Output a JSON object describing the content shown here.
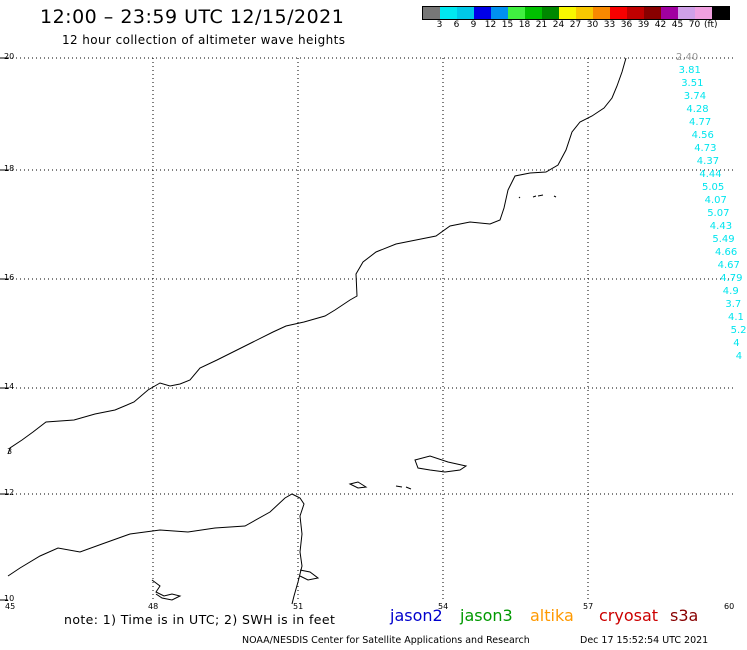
{
  "header": {
    "title": "12:00 – 23:59 UTC 12/15/2021",
    "subtitle": "12 hour collection of altimeter wave heights"
  },
  "legend": {
    "colors": [
      "#777777",
      "#00e8f0",
      "#00c8e8",
      "#0000e8",
      "#0090f0",
      "#40f040",
      "#00c000",
      "#008800",
      "#f8f800",
      "#f8c800",
      "#f88800",
      "#f80000",
      "#c00000",
      "#880000",
      "#a000a0",
      "#d0a0e8",
      "#f0a0e0",
      "#000000"
    ],
    "labels": [
      "3",
      "6",
      "9",
      "12",
      "15",
      "18",
      "21",
      "24",
      "27",
      "30",
      "33",
      "36",
      "39",
      "42",
      "45",
      "70"
    ],
    "unit": "(ft)"
  },
  "map": {
    "lat_labels": [
      "20",
      "18",
      "16",
      "14",
      "12",
      "10"
    ],
    "lon_labels": [
      "45",
      "48",
      "51",
      "54",
      "57",
      "60"
    ],
    "swh_values": [
      "2.40",
      "3.81",
      "3.51",
      "3.74",
      "4.28",
      "4.77",
      "4.56",
      "4.73",
      "4.37",
      "4.44",
      "5.05",
      "4.07",
      "5.07",
      "4.43",
      "5.49",
      "4.66",
      "4.67",
      "4.79",
      "4.9",
      "3.7",
      "4.1",
      "5.2",
      "4",
      "4"
    ],
    "coast_labels": [
      "3"
    ]
  },
  "footer": {
    "note": "note: 1) Time is in UTC; 2) SWH is in feet",
    "satellites": [
      {
        "name": "jason2",
        "color": "#0000cc"
      },
      {
        "name": "jason3",
        "color": "#009900"
      },
      {
        "name": "altika",
        "color": "#ff9900"
      },
      {
        "name": "cryosat",
        "color": "#cc0000"
      },
      {
        "name": "s3a",
        "color": "#880000"
      }
    ],
    "credit": "NOAA/NESDIS Center for Satellite Applications and Research",
    "timestamp": "Dec 17 15:52:54 UTC 2021"
  }
}
